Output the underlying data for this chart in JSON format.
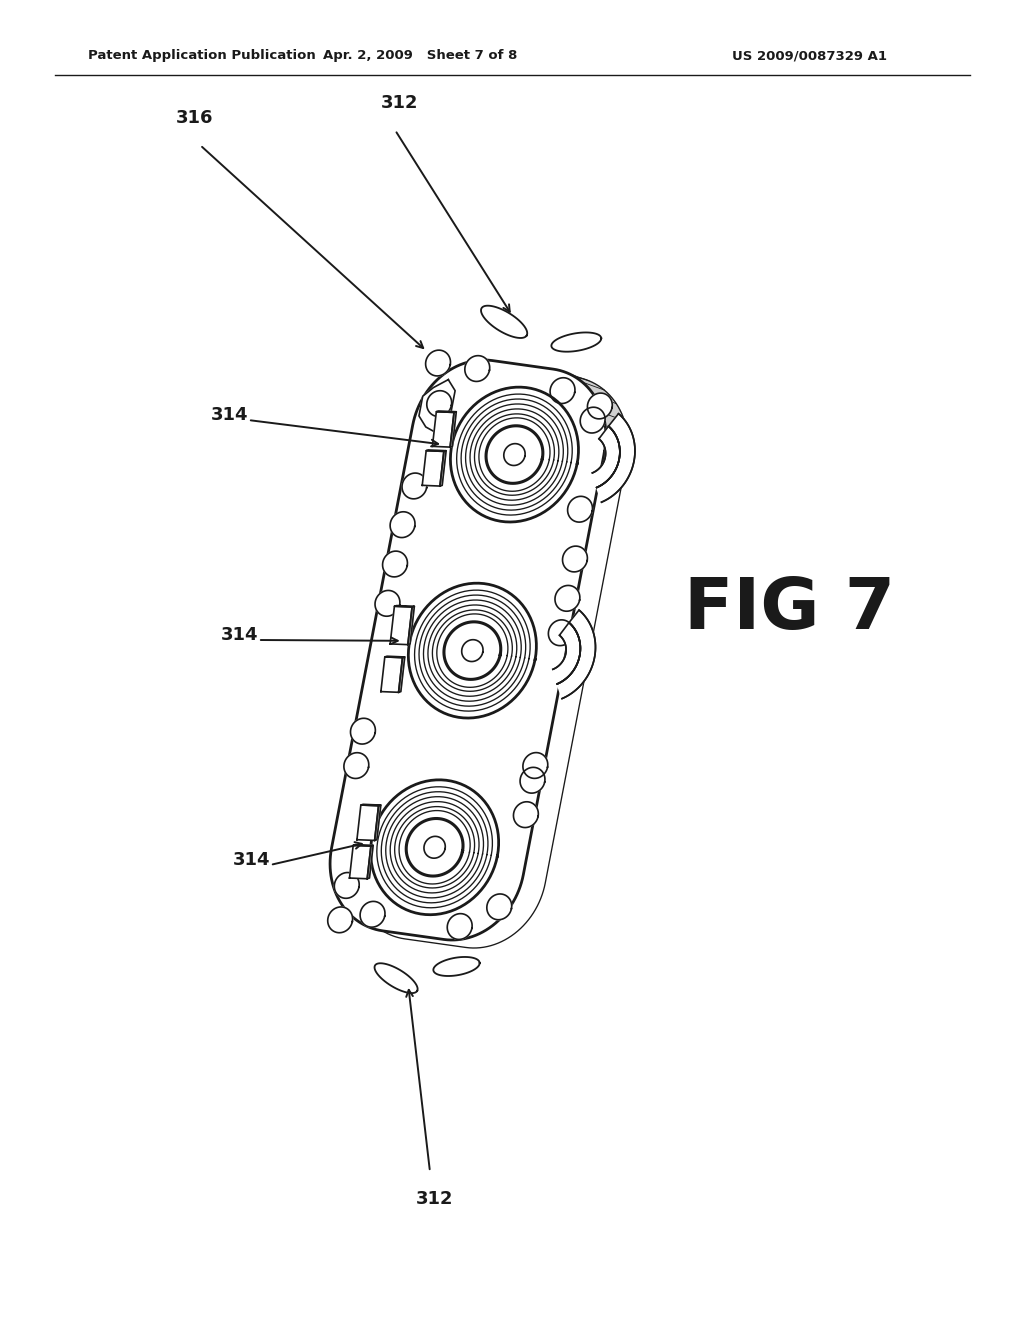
{
  "header_left": "Patent Application Publication",
  "header_center": "Apr. 2, 2009   Sheet 7 of 8",
  "header_right": "US 2009/0087329 A1",
  "fig_label": "FIG 7",
  "ref_316": "316",
  "ref_314": "314",
  "ref_312": "312",
  "bg_color": "#ffffff",
  "line_color": "#1a1a1a",
  "lw_main": 2.0,
  "lw_thin": 1.2,
  "lw_detail": 0.9
}
